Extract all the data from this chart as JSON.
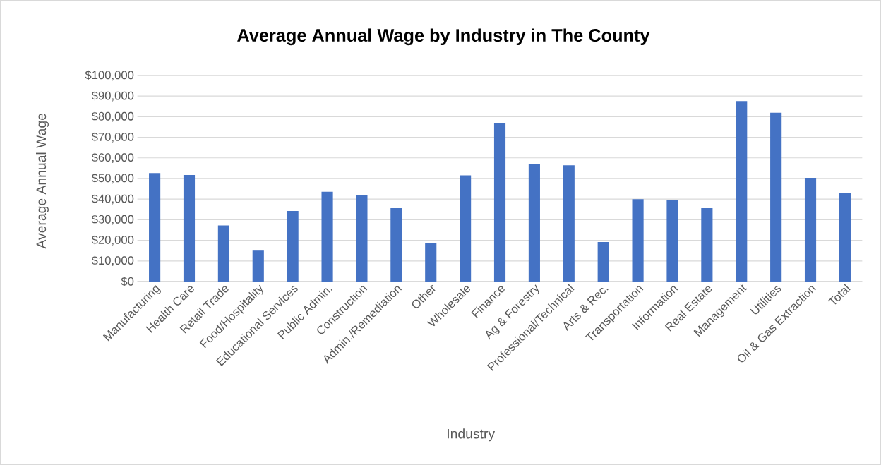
{
  "chart_data": {
    "type": "bar",
    "title": "Average Annual Wage by Industry in The County",
    "xlabel": "Industry",
    "ylabel": "Average Annual Wage",
    "categories": [
      "Manufacturing",
      "Health Care",
      "Retail Trade",
      "Food/Hospitality",
      "Educational Services",
      "Public Admin.",
      "Construction",
      "Admin./Remediation",
      "Other",
      "Wholesale",
      "Finance",
      "Ag & Forestry",
      "Professional/Technical",
      "Arts & Rec.",
      "Transportation",
      "Information",
      "Real Estate",
      "Management",
      "Utilities",
      "Oil & Gas Extraction",
      "Total"
    ],
    "values": [
      52600,
      51700,
      27200,
      15000,
      34200,
      43600,
      42000,
      35600,
      18800,
      51500,
      76800,
      56900,
      56400,
      19200,
      40000,
      39600,
      35600,
      87600,
      81900,
      50300,
      42900
    ],
    "color": "#4472c4",
    "ylim": [
      0,
      100000
    ],
    "yticks": [
      {
        "value": 0,
        "label": "$0"
      },
      {
        "value": 10000,
        "label": "$10,000"
      },
      {
        "value": 20000,
        "label": "$20,000"
      },
      {
        "value": 30000,
        "label": "$30,000"
      },
      {
        "value": 40000,
        "label": "$40,000"
      },
      {
        "value": 50000,
        "label": "$50,000"
      },
      {
        "value": 60000,
        "label": "$60,000"
      },
      {
        "value": 70000,
        "label": "$70,000"
      },
      {
        "value": 80000,
        "label": "$80,000"
      },
      {
        "value": 90000,
        "label": "$90,000"
      },
      {
        "value": 100000,
        "label": "$100,000"
      }
    ],
    "grid": "y"
  }
}
